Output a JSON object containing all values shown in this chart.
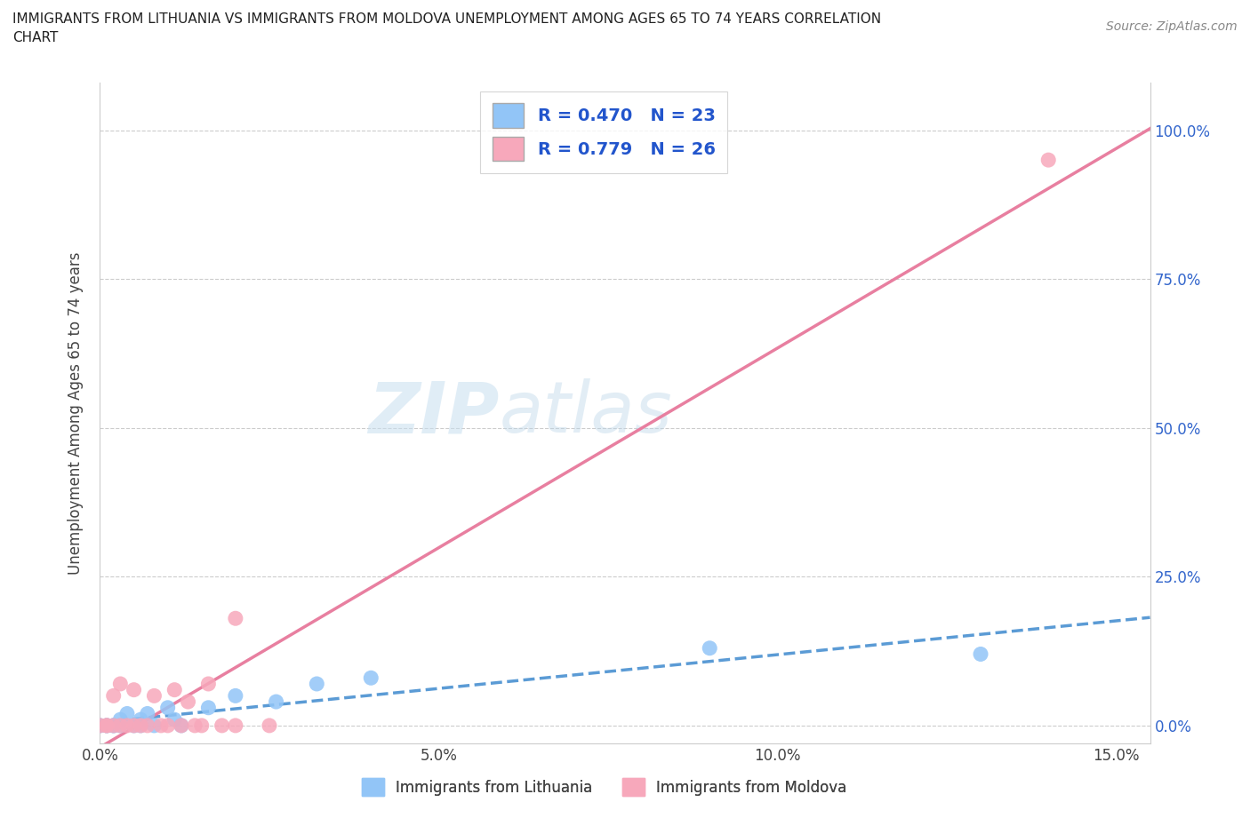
{
  "title_line1": "IMMIGRANTS FROM LITHUANIA VS IMMIGRANTS FROM MOLDOVA UNEMPLOYMENT AMONG AGES 65 TO 74 YEARS CORRELATION",
  "title_line2": "CHART",
  "source": "Source: ZipAtlas.com",
  "ylabel": "Unemployment Among Ages 65 to 74 years",
  "xlabel_bottom": "Immigrants from Lithuania",
  "xlabel_bottom2": "Immigrants from Moldova",
  "xlim": [
    0.0,
    0.155
  ],
  "ylim": [
    -0.03,
    1.08
  ],
  "yticks": [
    0.0,
    0.25,
    0.5,
    0.75,
    1.0
  ],
  "ytick_labels_right": [
    "0.0%",
    "25.0%",
    "50.0%",
    "75.0%",
    "100.0%"
  ],
  "xticks": [
    0.0,
    0.05,
    0.1,
    0.15
  ],
  "xtick_labels": [
    "0.0%",
    "5.0%",
    "10.0%",
    "15.0%"
  ],
  "lithuania_color": "#92c5f7",
  "moldova_color": "#f7a8bb",
  "lithuania_line_color": "#5b9bd5",
  "moldova_line_color": "#e87fa0",
  "lithuania_R": 0.47,
  "lithuania_N": 23,
  "moldova_R": 0.779,
  "moldova_N": 26,
  "legend_R_color": "#2255cc",
  "right_tick_color": "#3366cc",
  "watermark_zip": "ZIP",
  "watermark_atlas": "atlas",
  "lithuania_x": [
    0.0,
    0.001,
    0.001,
    0.002,
    0.002,
    0.003,
    0.003,
    0.004,
    0.005,
    0.006,
    0.006,
    0.007,
    0.008,
    0.01,
    0.011,
    0.012,
    0.016,
    0.02,
    0.026,
    0.032,
    0.04,
    0.09,
    0.13
  ],
  "lithuania_y": [
    0.0,
    0.0,
    0.0,
    0.0,
    0.0,
    0.01,
    0.0,
    0.02,
    0.0,
    0.0,
    0.01,
    0.02,
    0.0,
    0.03,
    0.01,
    0.0,
    0.03,
    0.05,
    0.04,
    0.07,
    0.08,
    0.13,
    0.12
  ],
  "moldova_x": [
    0.0,
    0.001,
    0.001,
    0.002,
    0.002,
    0.003,
    0.003,
    0.004,
    0.005,
    0.005,
    0.006,
    0.007,
    0.008,
    0.009,
    0.01,
    0.011,
    0.012,
    0.013,
    0.014,
    0.015,
    0.016,
    0.018,
    0.02,
    0.025,
    0.02,
    0.14
  ],
  "moldova_y": [
    0.0,
    0.0,
    0.0,
    0.0,
    0.05,
    0.0,
    0.07,
    0.0,
    0.06,
    0.0,
    0.0,
    0.0,
    0.05,
    0.0,
    0.0,
    0.06,
    0.0,
    0.04,
    0.0,
    0.0,
    0.07,
    0.0,
    0.18,
    0.0,
    0.0,
    0.95
  ]
}
